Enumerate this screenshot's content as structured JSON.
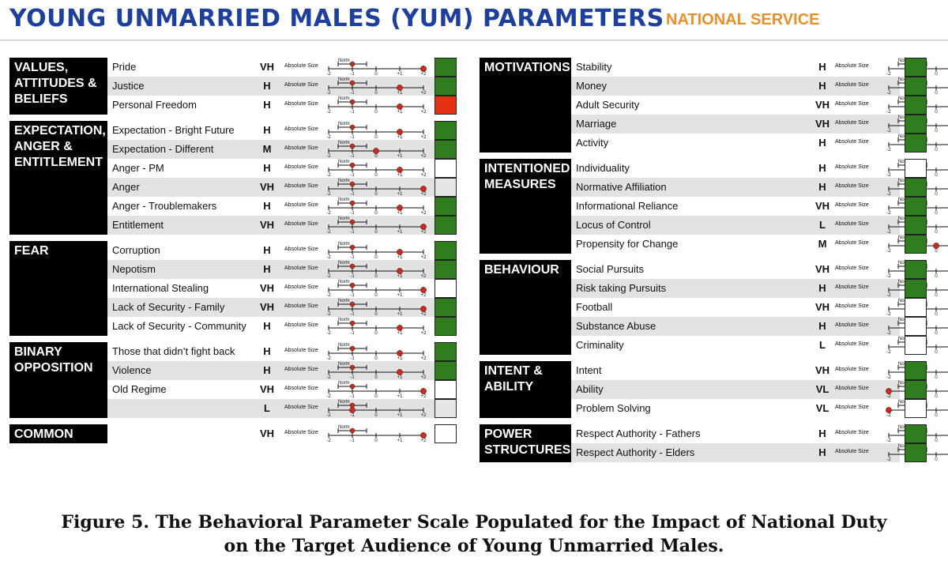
{
  "header": {
    "title": "YOUNG UNMARRIED MALES (YUM) PARAMETERS",
    "subtitle": "NATIONAL SERVICE"
  },
  "scale": {
    "norm_label": "Norm",
    "absolute_label": "Absolute Size",
    "ticks": [
      "-2",
      "-1",
      "0",
      "+1",
      "+2"
    ],
    "norm_position": -1,
    "rating_positions": {
      "VL": -2,
      "L": -1,
      "M": 0,
      "H": 1,
      "VH": 2
    }
  },
  "colors": {
    "header_title": "#1f3f9c",
    "header_subtitle": "#e8902a",
    "category_bg": "#000000",
    "row_shade": "#e2e2e2",
    "marker": "#cc2a1c",
    "green": "#2e7d1f",
    "red": "#e53012",
    "white": "#ffffff",
    "grey": "#e6e6e6"
  },
  "left": {
    "categories": [
      {
        "label": "VALUES,\nATTITUDES &\nBELIEFS",
        "rows": 3
      },
      {
        "label": "EXPECTATION,\nANGER &\nENTITLEMENT",
        "rows": 6
      },
      {
        "label": "FEAR",
        "rows": 5
      },
      {
        "label": "BINARY\nOPPOSITION",
        "rows": 4
      },
      {
        "label": "COMMON\nENEMY",
        "rows": 1
      }
    ],
    "rows": [
      {
        "name": "Pride",
        "rating": "VH",
        "status": "green"
      },
      {
        "name": "Justice",
        "rating": "H",
        "status": "green"
      },
      {
        "name": "Personal Freedom",
        "rating": "H",
        "status": "red"
      },
      {
        "name": "Expectation - Bright Future",
        "rating": "H",
        "status": "green"
      },
      {
        "name": "Expectation - Different",
        "rating": "M",
        "status": "green"
      },
      {
        "name": "Anger - PM",
        "rating": "H",
        "status": "white"
      },
      {
        "name": "Anger",
        "rating": "VH",
        "status": "grey"
      },
      {
        "name": "Anger - Troublemakers",
        "rating": "H",
        "status": "green"
      },
      {
        "name": "Entitlement",
        "rating": "VH",
        "status": "green"
      },
      {
        "name": "Corruption",
        "rating": "H",
        "status": "green"
      },
      {
        "name": "Nepotism",
        "rating": "H",
        "status": "green"
      },
      {
        "name": "International Stealing",
        "rating": "VH",
        "status": "white"
      },
      {
        "name": "Lack of Security - Family",
        "rating": "VH",
        "status": "green"
      },
      {
        "name": "Lack of Security - Community",
        "rating": "H",
        "status": "green"
      },
      {
        "name": "Those that didn’t fight back",
        "rating": "H",
        "status": "green"
      },
      {
        "name": "Violence",
        "rating": "H",
        "status": "green"
      },
      {
        "name": "Old Regime",
        "rating": "VH",
        "status": "white"
      },
      {
        "name": "",
        "rating": "L",
        "status": "grey"
      },
      {
        "name": "",
        "rating": "VH",
        "status": "white"
      }
    ]
  },
  "right": {
    "categories": [
      {
        "label": "MOTIVATIONS",
        "rows": 5
      },
      {
        "label": "INTENTIONED\nMEASURES",
        "rows": 5
      },
      {
        "label": "BEHAVIOUR",
        "rows": 5
      },
      {
        "label": "INTENT &\nABILITY",
        "rows": 3
      },
      {
        "label": "POWER\nSTRUCTURES",
        "rows": 2
      }
    ],
    "rows": [
      {
        "name": "Stability",
        "rating": "H",
        "status": "green"
      },
      {
        "name": "Money",
        "rating": "H",
        "status": "green"
      },
      {
        "name": "Adult Security",
        "rating": "VH",
        "status": "green"
      },
      {
        "name": "Marriage",
        "rating": "VH",
        "status": "green"
      },
      {
        "name": "Activity",
        "rating": "H",
        "status": "green"
      },
      {
        "name": "Individuality",
        "rating": "H",
        "status": "white"
      },
      {
        "name": "Normative Affiliation",
        "rating": "H",
        "status": "green"
      },
      {
        "name": "Informational Reliance",
        "rating": "VH",
        "status": "green"
      },
      {
        "name": "Locus of Control",
        "rating": "L",
        "status": "green"
      },
      {
        "name": "Propensity for Change",
        "rating": "M",
        "status": "green"
      },
      {
        "name": "Social Pursuits",
        "rating": "VH",
        "status": "green"
      },
      {
        "name": "Risk taking Pursuits",
        "rating": "H",
        "status": "green"
      },
      {
        "name": "Football",
        "rating": "VH",
        "status": "white"
      },
      {
        "name": "Substance Abuse",
        "rating": "H",
        "status": "white"
      },
      {
        "name": "Criminality",
        "rating": "L",
        "status": "white"
      },
      {
        "name": "Intent",
        "rating": "VH",
        "status": "green"
      },
      {
        "name": "Ability",
        "rating": "VL",
        "status": "green"
      },
      {
        "name": "Problem Solving",
        "rating": "VL",
        "status": "white"
      },
      {
        "name": "Respect Authority - Fathers",
        "rating": "H",
        "status": "green"
      },
      {
        "name": "Respect Authority - Elders",
        "rating": "H",
        "status": "green"
      }
    ]
  },
  "caption": {
    "line1": "Figure 5. The Behavioral Parameter Scale Populated  for the Impact of National Duty",
    "line2": "on the Target Audience of Young Unmarried Males."
  }
}
